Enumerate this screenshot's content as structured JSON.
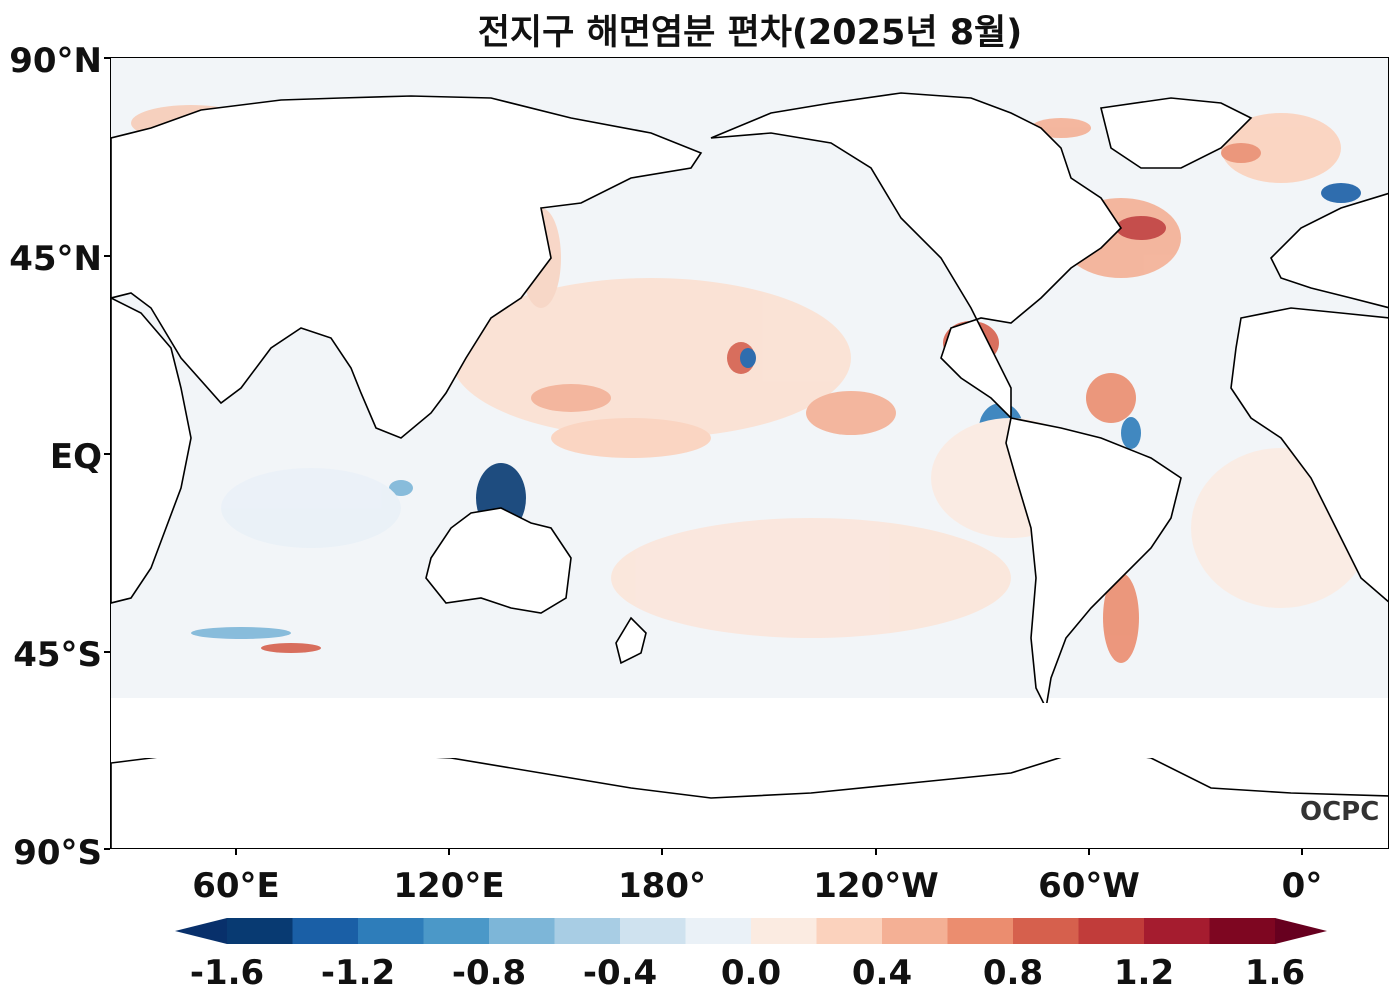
{
  "title": "전지구 해면염분 편차(2025년 8월)",
  "lat_labels": [
    "90°N",
    "45°N",
    "EQ",
    "45°S",
    "90°S"
  ],
  "lon_labels": [
    "60°E",
    "120°E",
    "180°",
    "120°W",
    "60°W",
    "0°"
  ],
  "logo": "OCPC",
  "colorbar": {
    "labels": [
      "-1.6",
      "-1.2",
      "-0.8",
      "-0.4",
      "0.0",
      "0.4",
      "0.8",
      "1.2",
      "1.6"
    ],
    "colors": [
      "#083a72",
      "#1a5fa6",
      "#2e7dba",
      "#4b98c8",
      "#7db6d8",
      "#a8cde4",
      "#cfe2ef",
      "#eaf1f7",
      "#fbebe1",
      "#fbd2bd",
      "#f4b095",
      "#eb8d6f",
      "#d6604d",
      "#c13c3a",
      "#a51c2f",
      "#7e0621"
    ],
    "extend_low": "#08306b",
    "extend_high": "#67001f"
  }
}
